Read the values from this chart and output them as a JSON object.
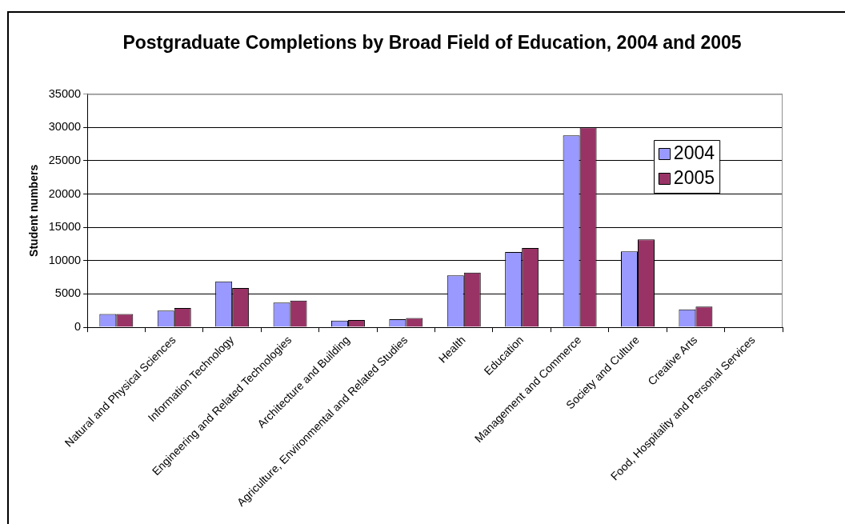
{
  "chart_data": {
    "type": "bar",
    "title": "Postgraduate Completions by Broad Field of Education, 2004 and 2005",
    "ylabel": "Student numbers",
    "categories": [
      null,
      "Natural and Physical Sciences",
      "Information Technology",
      "Engineering and Related Technologies",
      "Architecture and Building",
      "Agriculture, Environmental and Related Studies",
      "Health",
      "Education",
      "Management and Commerce",
      "Society and Culture",
      "Creative Arts",
      "Food, Hospitality and Personal Services"
    ],
    "series": [
      {
        "name": "2004",
        "color": "#9999ff",
        "values": [
          2000,
          2500,
          6900,
          3700,
          1000,
          1200,
          7800,
          11300,
          28800,
          11400,
          2700,
          null
        ]
      },
      {
        "name": "2005",
        "color": "#993366",
        "values": [
          2000,
          2900,
          5900,
          4000,
          1100,
          1400,
          8200,
          11900,
          30000,
          13200,
          3100,
          null
        ]
      }
    ],
    "ylim": [
      0,
      35000
    ],
    "yticks": [
      0,
      5000,
      10000,
      15000,
      20000,
      25000,
      30000,
      35000
    ],
    "grid": "y",
    "legend": "top right"
  }
}
